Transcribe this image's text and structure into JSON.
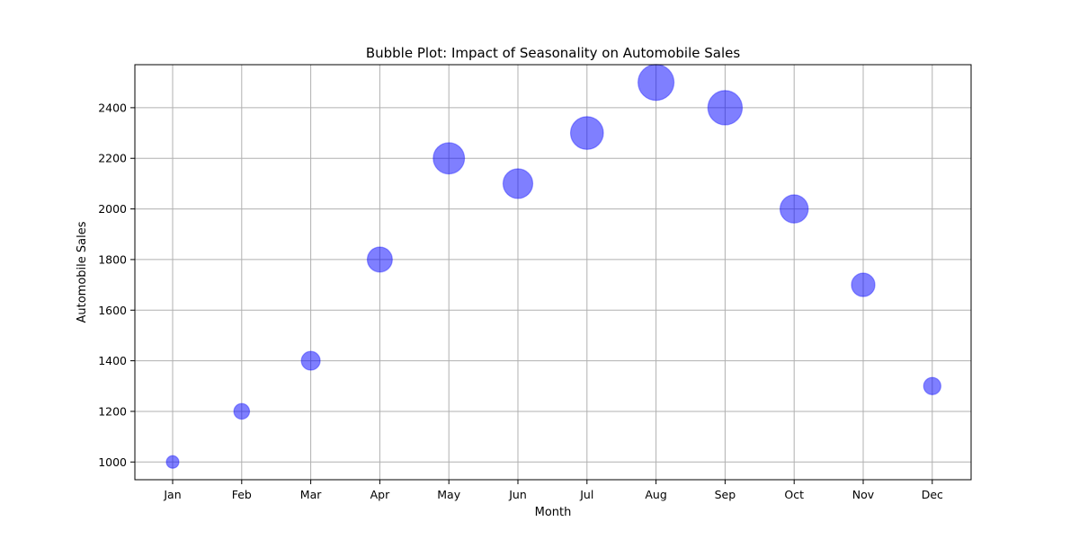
{
  "chart_data": {
    "type": "scatter",
    "variant": "bubble",
    "title": "Bubble Plot: Impact of Seasonality on Automobile Sales",
    "xlabel": "Month",
    "ylabel": "Automobile Sales",
    "categories": [
      "Jan",
      "Feb",
      "Mar",
      "Apr",
      "May",
      "Jun",
      "Jul",
      "Aug",
      "Sep",
      "Oct",
      "Nov",
      "Dec"
    ],
    "values": [
      1000,
      1200,
      1400,
      1800,
      2200,
      2100,
      2300,
      2500,
      2400,
      2000,
      1700,
      1300
    ],
    "bubble_size_encodes": "value",
    "ylim": [
      930,
      2570
    ],
    "yticks": [
      1000,
      1200,
      1400,
      1600,
      1800,
      2000,
      2200,
      2400
    ],
    "grid": true,
    "colors": {
      "bubble_fill": "#0000ff",
      "bubble_opacity": 0.5,
      "grid": "#b0b0b0",
      "axis": "#000000"
    }
  }
}
